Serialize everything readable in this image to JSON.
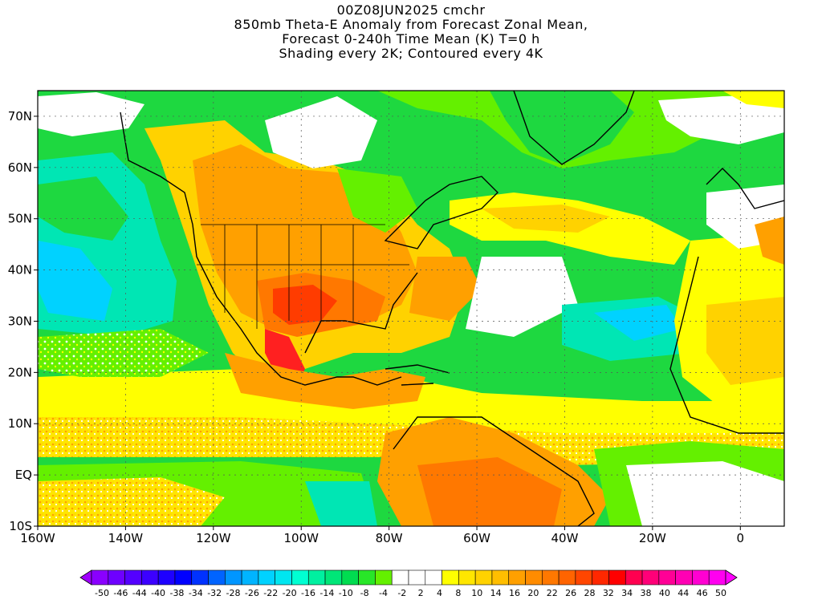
{
  "title": {
    "line1": "00Z08JUN2025 cmchr",
    "line2": "850mb Theta-E Anomaly from Forecast Zonal Mean,",
    "line3": "Forecast 0-240h Time Mean (K) T=0 h",
    "line4": "Shading every 2K; Contoured every 4K"
  },
  "map": {
    "lon_range": [
      -160,
      10
    ],
    "lat_range": [
      -10,
      75
    ],
    "lat_ticks": [
      {
        "value": 70,
        "label": "70N"
      },
      {
        "value": 60,
        "label": "60N"
      },
      {
        "value": 50,
        "label": "50N"
      },
      {
        "value": 40,
        "label": "40N"
      },
      {
        "value": 30,
        "label": "30N"
      },
      {
        "value": 20,
        "label": "20N"
      },
      {
        "value": 10,
        "label": "10N"
      },
      {
        "value": 0,
        "label": "EQ"
      },
      {
        "value": -10,
        "label": "10S"
      }
    ],
    "lon_ticks": [
      {
        "value": -160,
        "label": "160W"
      },
      {
        "value": -140,
        "label": "140W"
      },
      {
        "value": -120,
        "label": "120W"
      },
      {
        "value": -100,
        "label": "100W"
      },
      {
        "value": -80,
        "label": "80W"
      },
      {
        "value": -60,
        "label": "60W"
      },
      {
        "value": -40,
        "label": "40W"
      },
      {
        "value": -20,
        "label": "20W"
      },
      {
        "value": 0,
        "label": "0"
      }
    ]
  },
  "colorbar": {
    "labels": [
      "-50",
      "-46",
      "-44",
      "-40",
      "-38",
      "-34",
      "-32",
      "-28",
      "-26",
      "-22",
      "-20",
      "-16",
      "-14",
      "-10",
      "-8",
      "-4",
      "-2",
      "2",
      "4",
      "8",
      "10",
      "14",
      "16",
      "20",
      "22",
      "26",
      "28",
      "32",
      "34",
      "38",
      "40",
      "44",
      "46",
      "50"
    ],
    "colors": [
      "#8a00ff",
      "#6e00ff",
      "#5400ff",
      "#3c00ff",
      "#1e00ff",
      "#0000ff",
      "#0032ff",
      "#0064ff",
      "#0096ff",
      "#00b4ff",
      "#00d2ff",
      "#00e6f0",
      "#00ffd2",
      "#00f0a0",
      "#00e678",
      "#00dc50",
      "#28e628",
      "#64f000",
      "#ffffff",
      "#ffffff",
      "#ffffff",
      "#ffff00",
      "#ffe600",
      "#ffd200",
      "#ffbe00",
      "#ffa000",
      "#ff8c00",
      "#ff7800",
      "#ff6400",
      "#ff4600",
      "#ff2800",
      "#ff0000",
      "#ff0050",
      "#ff0078",
      "#ff0096",
      "#ff00b4",
      "#ff00d2",
      "#ff00f0"
    ],
    "under_color": "#a000ff",
    "over_color": "#ff00ff"
  },
  "palette": {
    "ocean_green": "#1ed840",
    "ocean_green_light": "#64f000",
    "teal": "#00e6b4",
    "cyan": "#00d2ff",
    "white": "#ffffff",
    "yellow": "#ffff00",
    "gold": "#ffd200",
    "orange": "#ffa000",
    "dark_orange": "#ff7800",
    "red": "#ff3c00",
    "crimson": "#ff2020",
    "coast": "#000000"
  }
}
